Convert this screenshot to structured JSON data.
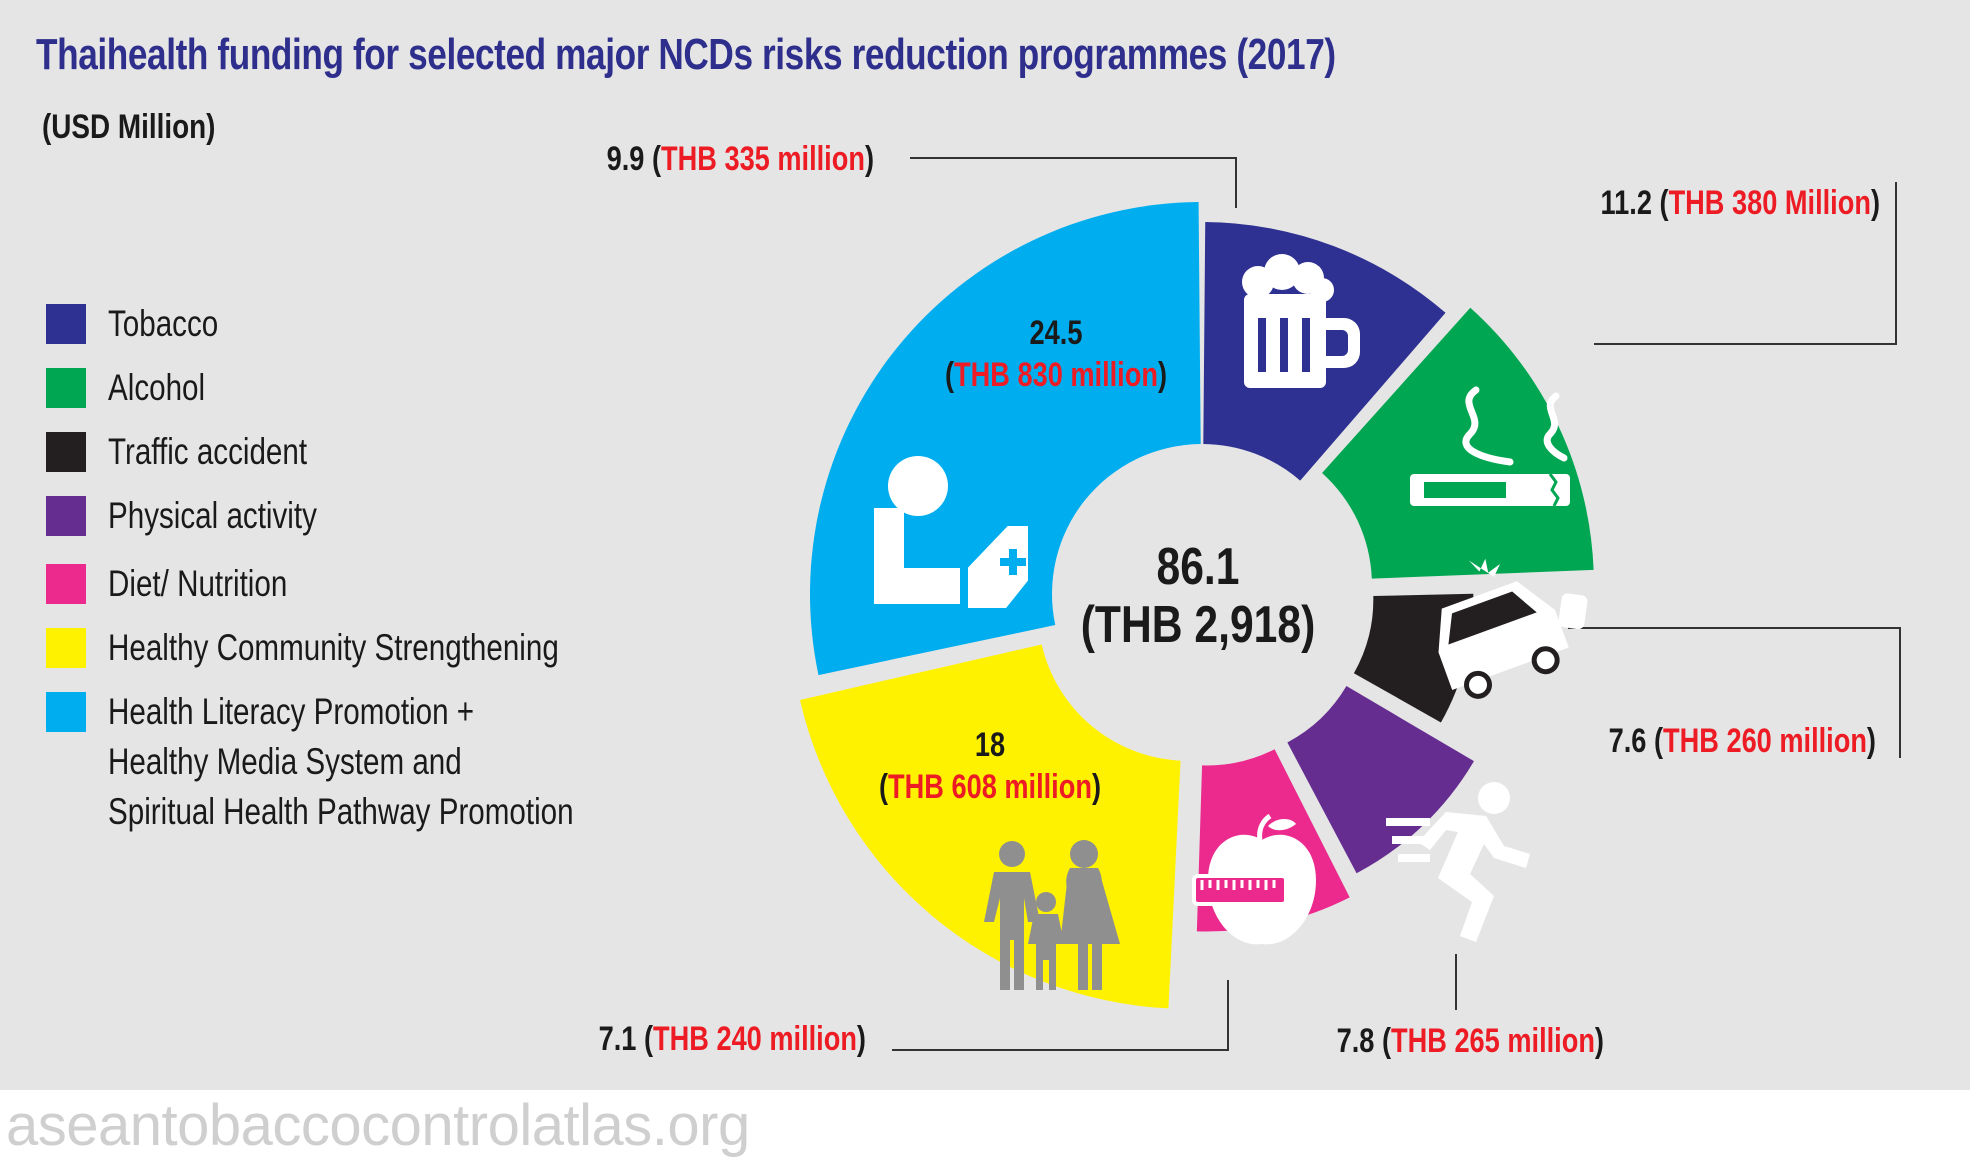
{
  "title": "Thaihealth funding for selected major NCDs risks reduction programmes (2017)",
  "unit_label": "(USD Million)",
  "watermark": "aseantobaccocontrolatlas.org",
  "center": {
    "value": "86.1",
    "thb": "(THB 2,918)"
  },
  "legend": [
    {
      "label": "Tobacco",
      "color": "#2e3192"
    },
    {
      "label": "Alcohol",
      "color": "#00a651"
    },
    {
      "label": "Traffic accident",
      "color": "#231f20"
    },
    {
      "label": "Physical activity",
      "color": "#662d91"
    },
    {
      "label": "Diet/ Nutrition",
      "color": "#ec2a8e"
    },
    {
      "label": "Healthy Community Strengthening",
      "color": "#fff200"
    },
    {
      "label": "Health Literacy Promotion +",
      "label_line2": "Healthy Media System and",
      "label_line3": "Spiritual Health Pathway Promotion",
      "color": "#00aeef"
    }
  ],
  "chart_data": {
    "type": "pie",
    "style": "donut",
    "title": "Thaihealth funding for selected major NCDs risks reduction programmes (2017)",
    "unit": "(USD Million)",
    "total": 86.1,
    "total_thb": "(THB 2,918)",
    "slices": [
      {
        "icon": "beer-mug-icon",
        "value": 9.9,
        "thb_text": "THB 335 million",
        "color": "#2e3192"
      },
      {
        "icon": "cigarette-icon",
        "value": 11.2,
        "thb_text": "THB 380 Million",
        "color": "#00a651"
      },
      {
        "icon": "car-crash-icon",
        "value": 7.6,
        "thb_text": "THB 260 million",
        "color": "#231f20"
      },
      {
        "icon": "running-person-icon",
        "value": 7.8,
        "thb_text": "THB 265 million",
        "color": "#662d91"
      },
      {
        "icon": "apple-tape-measure-icon",
        "value": 7.1,
        "thb_text": "THB 240 million",
        "color": "#ec2a8e"
      },
      {
        "icon": "family-icon",
        "value": 18,
        "thb_text": "THB 608 million",
        "color": "#fff200"
      },
      {
        "icon": "patient-medicine-icon",
        "value": 24.5,
        "thb_text": "THB 830 million",
        "color": "#00aeef"
      }
    ],
    "label_color": "#1a1a1a",
    "thb_color": "#ed1c24"
  }
}
